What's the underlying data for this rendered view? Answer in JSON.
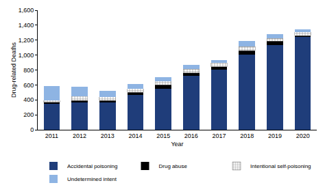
{
  "chart_data": {
    "type": "bar",
    "stacked": true,
    "x_label": "Year",
    "y_label": "Drug-related Deaths",
    "categories": [
      "2011",
      "2012",
      "2013",
      "2014",
      "2015",
      "2016",
      "2017",
      "2018",
      "2019",
      "2020"
    ],
    "series": [
      {
        "name": "Accidental poisoning",
        "color": "#1f3d7a",
        "values": [
          350,
          370,
          365,
          470,
          550,
          725,
          805,
          1010,
          1135,
          1240
        ]
      },
      {
        "name": "Drug abuse",
        "color": "#000000",
        "values": [
          20,
          20,
          25,
          30,
          50,
          35,
          40,
          50,
          50,
          20
        ]
      },
      {
        "name": "Intentional self-poisoning",
        "color": "#ffffff",
        "marker": "crosshatch",
        "values": [
          25,
          60,
          50,
          50,
          50,
          50,
          55,
          55,
          40,
          50
        ]
      },
      {
        "name": "Undetermined intent",
        "color": "#8eb4e3",
        "values": [
          190,
          130,
          85,
          65,
          55,
          55,
          35,
          70,
          55,
          30
        ]
      }
    ],
    "ylim": [
      0,
      1600
    ],
    "yticks": [
      0,
      200,
      400,
      600,
      800,
      {
        "value": 1000,
        "label": "1,000"
      },
      {
        "value": 1200,
        "label": "1,200"
      },
      {
        "value": 1400,
        "label": "1,400"
      },
      {
        "value": 1600,
        "label": "1,600"
      }
    ],
    "grid": false,
    "legend": "bottom"
  }
}
